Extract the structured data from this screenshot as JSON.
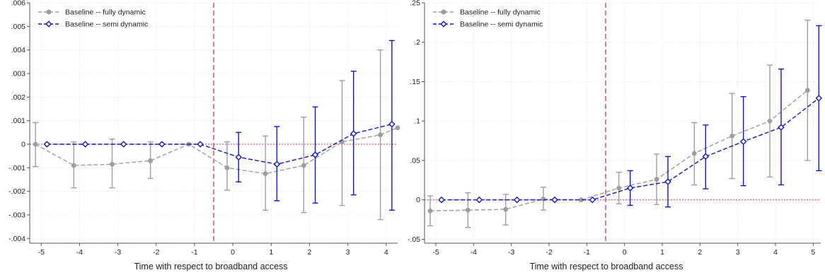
{
  "colors": {
    "fully": "#9e9e9e",
    "semi": "#1414d2",
    "zero_line": "#d6336c",
    "event_line": "#d6336c",
    "grid": "#e3e3e3",
    "axis": "#555555"
  },
  "chart_data": [
    {
      "type": "line",
      "title": "",
      "xlabel": "Time with respect to broadband access",
      "ylabel": "",
      "xlim": [
        -5.3,
        4.3
      ],
      "ylim": [
        -0.0042,
        0.006
      ],
      "x_ticks": [
        -5,
        -4,
        -3,
        -2,
        -1,
        0,
        1,
        2,
        3,
        4
      ],
      "x_tick_labels": [
        "-5",
        "-4",
        "-3",
        "-2",
        "-1",
        "0",
        "1",
        "2",
        "3",
        "4"
      ],
      "y_ticks": [
        -0.004,
        -0.003,
        -0.002,
        -0.001,
        0,
        0.001,
        0.002,
        0.003,
        0.004,
        0.005,
        0.006
      ],
      "y_tick_labels": [
        "-.004",
        "-.003",
        "-.002",
        "-.001",
        "0",
        ".001",
        ".002",
        ".003",
        ".004",
        ".005",
        ".006"
      ],
      "event_line_x": -0.5,
      "zero_line_y": 0,
      "grid": true,
      "legend_position": "top-left",
      "series": [
        {
          "name": "Baseline -- fully dynamic",
          "marker": "circle",
          "x": [
            -5.15,
            -4.15,
            -3.15,
            -2.15,
            -1.15,
            -0.15,
            0.85,
            1.85,
            2.85,
            3.85,
            4.3
          ],
          "y": [
            0.0,
            -0.0009,
            -0.00085,
            -0.0007,
            0.0,
            -0.001,
            -0.00125,
            -0.0009,
            0.0001,
            0.0004,
            0.0007
          ],
          "ci_low": [
            -0.00095,
            -0.00185,
            -0.00185,
            -0.00145,
            null,
            -0.00195,
            -0.0028,
            -0.0029,
            -0.0026,
            -0.0032,
            null
          ],
          "ci_high": [
            0.00092,
            0.0001,
            0.00022,
            0.0001,
            null,
            0.0001,
            0.00035,
            0.00115,
            0.0027,
            0.004,
            null
          ]
        },
        {
          "name": "Baseline -- semi dynamic",
          "marker": "diamond",
          "x": [
            -4.85,
            -3.85,
            -2.85,
            -1.85,
            -0.85,
            0.15,
            1.15,
            2.15,
            3.15,
            4.15
          ],
          "y": [
            0.0,
            0.0,
            0.0,
            0.0,
            0.0,
            -0.00055,
            -0.00085,
            -0.00045,
            0.00045,
            0.00085
          ],
          "ci_low": [
            null,
            null,
            null,
            null,
            null,
            -0.0016,
            -0.0024,
            -0.0025,
            -0.00215,
            -0.0028
          ],
          "ci_high": [
            null,
            null,
            null,
            null,
            null,
            0.0005,
            0.00075,
            0.00158,
            0.0031,
            0.0044
          ]
        }
      ]
    },
    {
      "type": "line",
      "title": "",
      "xlabel": "Time with respect to broadband access",
      "ylabel": "",
      "xlim": [
        -5.3,
        5.2
      ],
      "ylim": [
        -0.055,
        0.25
      ],
      "x_ticks": [
        -5,
        -4,
        -3,
        -2,
        -1,
        0,
        1,
        2,
        3,
        4,
        5
      ],
      "x_tick_labels": [
        "-5",
        "-4",
        "-3",
        "-2",
        "-1",
        "0",
        "1",
        "2",
        "3",
        "4",
        "5"
      ],
      "y_ticks": [
        -0.05,
        0,
        0.05,
        0.1,
        0.15,
        0.2,
        0.25
      ],
      "y_tick_labels": [
        "-.05",
        "0",
        ".05",
        ".1",
        ".15",
        ".2",
        ".25"
      ],
      "event_line_x": -0.5,
      "zero_line_y": 0,
      "grid": true,
      "legend_position": "top-left",
      "series": [
        {
          "name": "Baseline -- fully dynamic",
          "marker": "circle",
          "x": [
            -5.15,
            -4.15,
            -3.15,
            -2.15,
            -1.15,
            -0.15,
            0.85,
            1.85,
            2.85,
            3.85,
            4.85
          ],
          "y": [
            -0.014,
            -0.013,
            -0.012,
            0.001,
            0.0,
            0.015,
            0.026,
            0.059,
            0.081,
            0.1,
            0.139
          ],
          "ci_low": [
            -0.033,
            -0.035,
            -0.032,
            -0.013,
            null,
            -0.005,
            -0.006,
            0.019,
            0.027,
            0.029,
            0.05
          ],
          "ci_high": [
            0.005,
            0.009,
            0.007,
            0.016,
            null,
            0.035,
            0.058,
            0.098,
            0.135,
            0.171,
            0.228
          ]
        },
        {
          "name": "Baseline -- semi dynamic",
          "marker": "diamond",
          "x": [
            -4.85,
            -3.85,
            -2.85,
            -1.85,
            -0.85,
            0.15,
            1.15,
            2.15,
            3.15,
            4.15,
            5.15
          ],
          "y": [
            0.0,
            0.0,
            0.0,
            0.0,
            0.0,
            0.015,
            0.023,
            0.055,
            0.074,
            0.092,
            0.129
          ],
          "ci_low": [
            null,
            null,
            null,
            null,
            null,
            -0.007,
            -0.009,
            0.014,
            0.018,
            0.019,
            0.037
          ],
          "ci_high": [
            null,
            null,
            null,
            null,
            null,
            0.037,
            0.055,
            0.095,
            0.131,
            0.166,
            0.221
          ]
        }
      ]
    }
  ]
}
